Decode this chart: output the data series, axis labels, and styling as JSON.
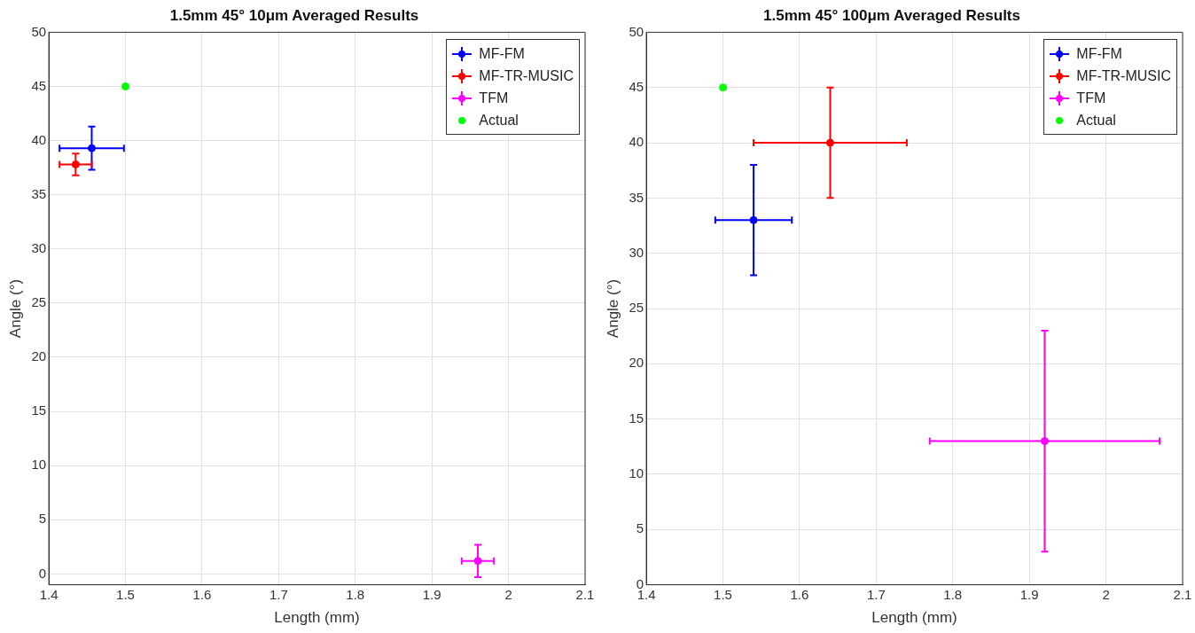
{
  "chart_data": [
    {
      "type": "scatter",
      "title": "1.5mm 45° 10μm Averaged Results",
      "xlabel": "Length (mm)",
      "ylabel": "Angle (°)",
      "xlim": [
        1.4,
        2.1
      ],
      "ylim": [
        -1,
        50
      ],
      "xticks": [
        1.4,
        1.5,
        1.6,
        1.7,
        1.8,
        1.9,
        2,
        2.1
      ],
      "yticks": [
        0,
        5,
        10,
        15,
        20,
        25,
        30,
        35,
        40,
        45,
        50
      ],
      "grid": true,
      "legend": "top right",
      "marker": "circle",
      "series": [
        {
          "name": "MF-FM",
          "color": "#0000ff",
          "x": [
            1.456
          ],
          "values": [
            39.3
          ],
          "errors": [
            2
          ],
          "xerrors": [
            0.042
          ]
        },
        {
          "name": "MF-TR-MUSIC",
          "color": "#ff0000",
          "x": [
            1.435
          ],
          "values": [
            37.8
          ],
          "errors": [
            1
          ],
          "xerrors": [
            0.021
          ]
        },
        {
          "name": "TFM",
          "color": "#ff00ff",
          "x": [
            1.96
          ],
          "values": [
            1.2
          ],
          "errors": [
            1.5
          ],
          "xerrors": [
            0.021
          ]
        },
        {
          "name": "Actual",
          "color": "#00ff00",
          "x": [
            1.5
          ],
          "values": [
            45
          ]
        }
      ]
    },
    {
      "type": "scatter",
      "title": "1.5mm 45° 100μm Averaged Results",
      "xlabel": "Length (mm)",
      "ylabel": "Angle (°)",
      "xlim": [
        1.4,
        2.1
      ],
      "ylim": [
        0,
        50
      ],
      "xticks": [
        1.4,
        1.5,
        1.6,
        1.7,
        1.8,
        1.9,
        2,
        2.1
      ],
      "yticks": [
        0,
        5,
        10,
        15,
        20,
        25,
        30,
        35,
        40,
        45,
        50
      ],
      "grid": true,
      "legend": "top right",
      "marker": "circle",
      "series": [
        {
          "name": "MF-FM",
          "color": "#0000ff",
          "x": [
            1.54
          ],
          "values": [
            33
          ],
          "errors": [
            5
          ],
          "xerrors": [
            0.05
          ]
        },
        {
          "name": "MF-TR-MUSIC",
          "color": "#ff0000",
          "x": [
            1.64
          ],
          "values": [
            40
          ],
          "errors": [
            5
          ],
          "xerrors": [
            0.1
          ]
        },
        {
          "name": "TFM",
          "color": "#ff00ff",
          "x": [
            1.92
          ],
          "values": [
            13
          ],
          "errors": [
            10
          ],
          "xerrors": [
            0.15
          ]
        },
        {
          "name": "Actual",
          "color": "#00ff00",
          "x": [
            1.5
          ],
          "values": [
            45
          ]
        }
      ]
    }
  ]
}
